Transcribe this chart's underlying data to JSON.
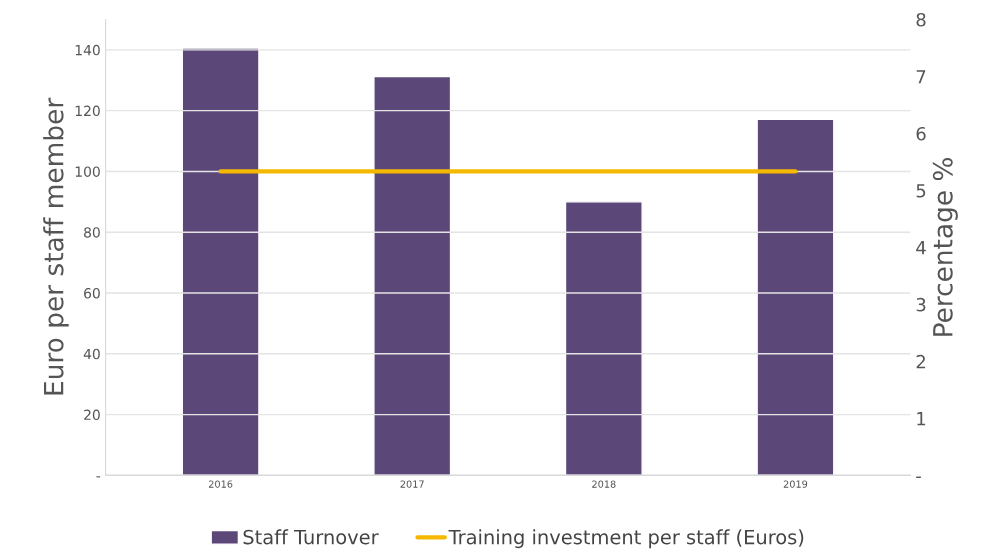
{
  "chart_data": {
    "type": "bar",
    "ylabel": "Euro per staff member",
    "y2label": "Percentage %",
    "categories": [
      "2016",
      "2017",
      "2018",
      "2019"
    ],
    "series": [
      {
        "name": "Staff Turnover",
        "axis": "y2",
        "color": "#5b4878",
        "values": [
          7.5,
          7.0,
          4.8,
          6.25
        ]
      },
      {
        "name": "Training investment per staff (Euros)",
        "type": "line",
        "axis": "y",
        "color": "#f5b800",
        "values": [
          100,
          100,
          100,
          100
        ]
      }
    ],
    "ylim": [
      0,
      150
    ],
    "yticks": [
      {
        "value": 0,
        "label": "-"
      },
      20,
      40,
      60,
      80,
      100,
      120,
      140
    ],
    "y2lim": [
      0,
      8
    ],
    "y2ticks": [
      {
        "value": 0,
        "label": "-"
      },
      1,
      2,
      3,
      4,
      5,
      6,
      7,
      8
    ],
    "grid": "y",
    "legend": "bottom",
    "marker": "none",
    "line_style": "solid"
  }
}
